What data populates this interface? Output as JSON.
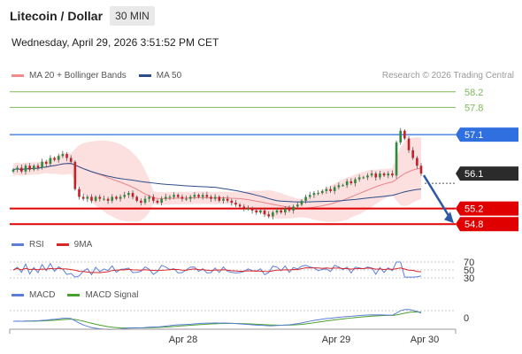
{
  "header": {
    "pair": "Litecoin / Dollar",
    "interval": "30 MIN",
    "datetime": "Wednesday, April 29, 2026 3:51:52 PM CET"
  },
  "legend_main": [
    {
      "label": "MA 20 + Bollinger Bands",
      "color": "#f08c8c"
    },
    {
      "label": "MA 50",
      "color": "#2c4d8a"
    }
  ],
  "credit": "Research © 2026 Trading Central",
  "legend_rsi": [
    {
      "label": "RSI",
      "color": "#5b7fd6"
    },
    {
      "label": "9MA",
      "color": "#d9262b"
    }
  ],
  "legend_macd": [
    {
      "label": "MACD",
      "color": "#5b7fd6"
    },
    {
      "label": "MACD Signal",
      "color": "#4aa02c"
    }
  ],
  "chart_data": {
    "type": "candlestick",
    "ylim": [
      54.6,
      58.4
    ],
    "levels": [
      {
        "value": 58.2,
        "label": "58.2",
        "style": "target",
        "color": "#7bb85a"
      },
      {
        "value": 57.8,
        "label": "57.8",
        "style": "target",
        "color": "#7bb85a"
      },
      {
        "value": 57.1,
        "label": "57.1",
        "style": "pivot",
        "color": "#2f6fe0"
      },
      {
        "value": 56.1,
        "label": "56.1",
        "style": "last",
        "color": "#2b2b2b"
      },
      {
        "value": 55.2,
        "label": "55.2",
        "style": "support",
        "color": "#e00000"
      },
      {
        "value": 54.8,
        "label": "54.8",
        "style": "support",
        "color": "#e00000"
      }
    ],
    "x_ticks": [
      "Apr 28",
      "Apr 29",
      "Apr 30"
    ],
    "rsi_ticks": [
      "70",
      "50",
      "30"
    ],
    "macd_ticks": [
      "0"
    ],
    "closes": [
      56.2,
      56.25,
      56.15,
      56.3,
      56.2,
      56.3,
      56.25,
      56.4,
      56.35,
      56.5,
      56.45,
      56.55,
      56.6,
      56.5,
      56.4,
      55.7,
      55.5,
      55.45,
      55.5,
      55.4,
      55.5,
      55.45,
      55.45,
      55.4,
      55.5,
      55.45,
      55.5,
      55.55,
      55.6,
      55.5,
      55.4,
      55.35,
      55.45,
      55.5,
      55.4,
      55.35,
      55.45,
      55.5,
      55.5,
      55.55,
      55.5,
      55.45,
      55.45,
      55.5,
      55.55,
      55.5,
      55.55,
      55.5,
      55.45,
      55.5,
      55.4,
      55.45,
      55.4,
      55.35,
      55.3,
      55.25,
      55.2,
      55.2,
      55.15,
      55.1,
      55.15,
      55.05,
      55.0,
      55.1,
      55.15,
      55.1,
      55.2,
      55.15,
      55.25,
      55.3,
      55.4,
      55.5,
      55.55,
      55.6,
      55.6,
      55.65,
      55.7,
      55.65,
      55.75,
      55.8,
      55.8,
      55.9,
      55.85,
      55.95,
      56.0,
      56.0,
      56.05,
      56.1,
      56.0,
      56.1,
      56.05,
      56.1,
      56.05,
      56.9,
      57.2,
      57.0,
      56.7,
      56.5,
      56.3,
      56.1
    ]
  }
}
